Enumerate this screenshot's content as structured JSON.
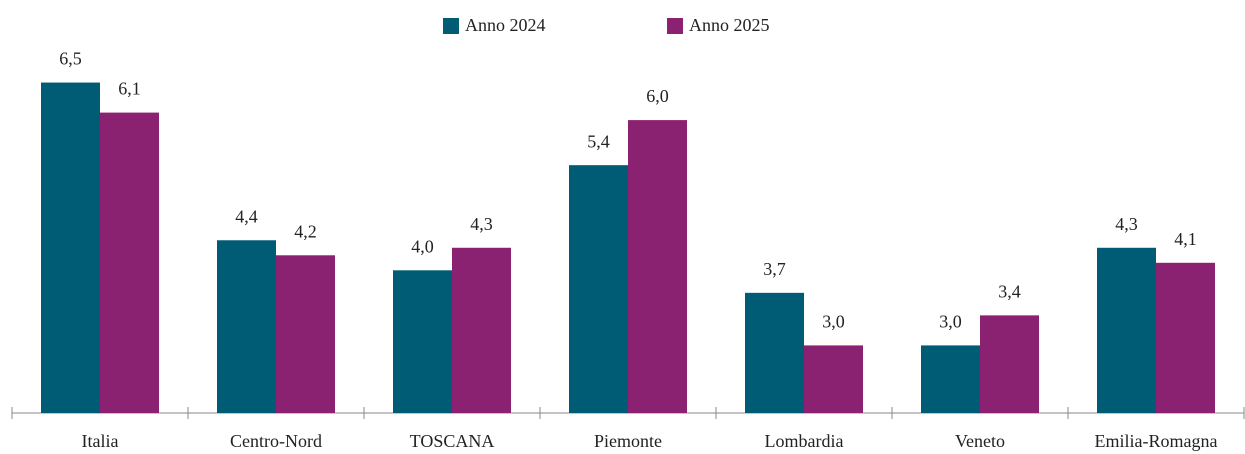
{
  "chart_data": {
    "type": "bar",
    "categories": [
      "Italia",
      "Centro-Nord",
      "TOSCANA",
      "Piemonte",
      "Lombardia",
      "Veneto",
      "Emilia-Romagna"
    ],
    "series": [
      {
        "name": "Anno 2024",
        "color": "#005b74",
        "values": [
          6.5,
          4.4,
          4.0,
          5.4,
          3.7,
          3.0,
          4.3
        ],
        "value_labels": [
          "6,5",
          "4,4",
          "4,0",
          "5,4",
          "3,7",
          "3,0",
          "4,3"
        ]
      },
      {
        "name": "Anno 2025",
        "color": "#8b2171",
        "values": [
          6.1,
          4.2,
          4.3,
          6.0,
          3.0,
          3.4,
          4.1
        ],
        "value_labels": [
          "6,1",
          "4,2",
          "4,3",
          "6,0",
          "3,0",
          "3,4",
          "4,1"
        ]
      }
    ],
    "ylim": [
      2.1,
      7.0
    ],
    "legend": "top"
  }
}
